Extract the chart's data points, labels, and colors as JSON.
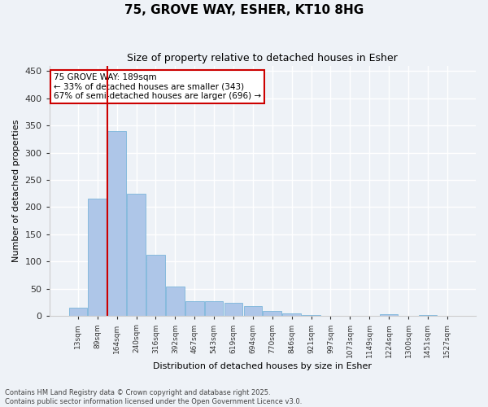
{
  "title": "75, GROVE WAY, ESHER, KT10 8HG",
  "subtitle": "Size of property relative to detached houses in Esher",
  "xlabel": "Distribution of detached houses by size in Esher",
  "ylabel": "Number of detached properties",
  "bar_values": [
    15,
    216,
    340,
    224,
    112,
    54,
    28,
    27,
    25,
    18,
    9,
    5,
    2,
    1,
    0,
    0,
    4,
    0,
    2,
    1
  ],
  "bar_labels": [
    "13sqm",
    "89sqm",
    "164sqm",
    "240sqm",
    "316sqm",
    "392sqm",
    "467sqm",
    "543sqm",
    "619sqm",
    "694sqm",
    "770sqm",
    "846sqm",
    "921sqm",
    "997sqm",
    "1073sqm",
    "1149sqm",
    "1224sqm",
    "1300sqm",
    "1451sqm",
    "1527sqm"
  ],
  "bar_color": "#aec6e8",
  "bar_edge_color": "#6aaed6",
  "vline_pos": 1.5,
  "vline_color": "#cc0000",
  "annotation_text": "75 GROVE WAY: 189sqm\n← 33% of detached houses are smaller (343)\n67% of semi-detached houses are larger (696) →",
  "annotation_box_color": "#ffffff",
  "annotation_box_edge": "#cc0000",
  "ylim": [
    0,
    460
  ],
  "yticks": [
    0,
    50,
    100,
    150,
    200,
    250,
    300,
    350,
    400,
    450
  ],
  "bg_color": "#eef2f7",
  "grid_color": "#ffffff",
  "footnote1": "Contains HM Land Registry data © Crown copyright and database right 2025.",
  "footnote2": "Contains public sector information licensed under the Open Government Licence v3.0."
}
